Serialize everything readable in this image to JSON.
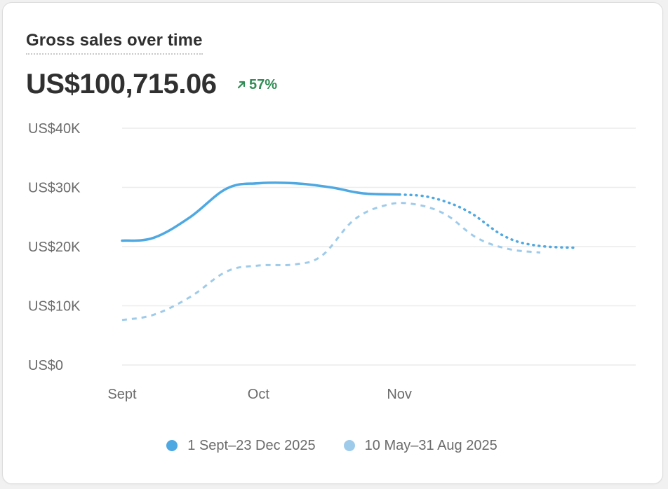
{
  "card": {
    "title": "Gross sales over time",
    "total": "US$100,715.06",
    "change": {
      "text": "57%",
      "direction": "up",
      "color": "#2f8c55"
    }
  },
  "chart_data": {
    "type": "line",
    "ylim": [
      0,
      40000
    ],
    "y_ticks": [
      {
        "value": 40000,
        "label": "US$40K"
      },
      {
        "value": 30000,
        "label": "US$30K"
      },
      {
        "value": 20000,
        "label": "US$20K"
      },
      {
        "value": 10000,
        "label": "US$10K"
      },
      {
        "value": 0,
        "label": "US$0"
      }
    ],
    "x_ticks": [
      {
        "day": 0,
        "label": "Sept"
      },
      {
        "day": 30,
        "label": "Oct"
      },
      {
        "day": 61,
        "label": "Nov"
      }
    ],
    "x_range": [
      0,
      113
    ],
    "grid": true,
    "legend_position": "bottom",
    "series": [
      {
        "name": "1 Sept–23 Dec 2025",
        "color": "#4ea8e2",
        "style": "solid",
        "projected_style": "dotted",
        "projected_from_day": 61,
        "points": [
          [
            0,
            21000
          ],
          [
            7,
            21500
          ],
          [
            15,
            25000
          ],
          [
            23,
            29800
          ],
          [
            30,
            30700
          ],
          [
            38,
            30700
          ],
          [
            46,
            30000
          ],
          [
            53,
            29000
          ],
          [
            61,
            28800
          ],
          [
            68,
            28300
          ],
          [
            76,
            26000
          ],
          [
            84,
            21800
          ],
          [
            91,
            20200
          ],
          [
            100,
            19800
          ]
        ]
      },
      {
        "name": "10 May–31 Aug 2025",
        "color": "#9fcbea",
        "style": "dashed",
        "points": [
          [
            0,
            7600
          ],
          [
            7,
            8500
          ],
          [
            15,
            11500
          ],
          [
            23,
            15800
          ],
          [
            30,
            16800
          ],
          [
            38,
            17000
          ],
          [
            44,
            18500
          ],
          [
            51,
            24500
          ],
          [
            58,
            27000
          ],
          [
            64,
            27200
          ],
          [
            71,
            25500
          ],
          [
            78,
            21500
          ],
          [
            85,
            19600
          ],
          [
            92,
            19000
          ]
        ]
      }
    ]
  }
}
